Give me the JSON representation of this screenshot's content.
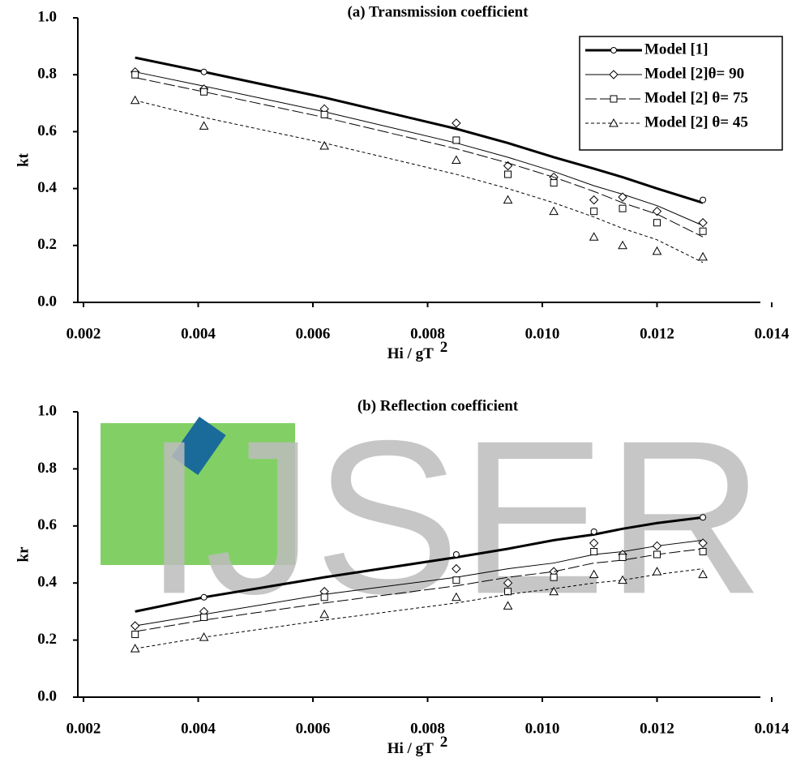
{
  "watermark": "IJSER",
  "chart_data": [
    {
      "type": "line",
      "title": "(a) Transmission coefficient",
      "x_label": "Hi / gT",
      "x_label_superscript": "2",
      "y_label": "kt",
      "x": [
        0.0029,
        0.0041,
        0.0062,
        0.0085,
        0.0094,
        0.0102,
        0.0109,
        0.0114,
        0.012,
        0.0128
      ],
      "xlim": [
        0.002,
        0.014
      ],
      "xticks": [
        0.002,
        0.004,
        0.006,
        0.008,
        {
          "value": 0.01,
          "label": "0.010"
        },
        0.012,
        0.014
      ],
      "ylim": [
        0,
        1
      ],
      "yticks": [
        {
          "value": 0,
          "label": "0.0"
        },
        0.2,
        0.4,
        0.6,
        0.8,
        {
          "value": 1,
          "label": "1.0"
        }
      ],
      "legend": "upper right",
      "series": [
        {
          "name": "Model [1]",
          "color": "#000000",
          "marker": "circle",
          "dash": "solid",
          "width": 3,
          "line": [
            0.86,
            0.81,
            0.72,
            0.61,
            0.56,
            0.51,
            0.47,
            0.44,
            0.4,
            0.35
          ],
          "values": [
            null,
            0.81,
            null,
            null,
            null,
            null,
            null,
            null,
            null,
            0.36
          ]
        },
        {
          "name": "Model [2]θ= 90",
          "color": "#000000",
          "marker": "diamond",
          "dash": "solid",
          "width": 1,
          "line": [
            0.81,
            0.76,
            0.67,
            0.56,
            0.51,
            0.46,
            0.41,
            0.38,
            0.34,
            0.27
          ],
          "values": [
            0.81,
            0.75,
            0.68,
            0.63,
            0.48,
            0.44,
            0.36,
            0.37,
            0.32,
            0.28
          ]
        },
        {
          "name": "Model [2] θ= 75",
          "color": "#000000",
          "marker": "square",
          "dash": "long",
          "width": 1,
          "line": [
            0.79,
            0.74,
            0.65,
            0.54,
            0.49,
            0.44,
            0.39,
            0.35,
            0.31,
            0.23
          ],
          "values": [
            0.8,
            0.74,
            0.66,
            0.57,
            0.45,
            0.42,
            0.32,
            0.33,
            0.28,
            0.25
          ]
        },
        {
          "name": "Model [2] θ= 45",
          "color": "#000000",
          "marker": "triangle",
          "dash": "short",
          "width": 1,
          "line": [
            0.71,
            0.65,
            0.56,
            0.45,
            0.4,
            0.35,
            0.3,
            0.26,
            0.22,
            0.14
          ],
          "values": [
            0.71,
            0.62,
            0.55,
            0.5,
            0.36,
            0.32,
            0.23,
            0.2,
            0.18,
            0.16
          ]
        }
      ]
    },
    {
      "type": "line",
      "title": "(b) Reflection coefficient",
      "x_label": "Hi / gT",
      "x_label_superscript": "2",
      "y_label": "kr",
      "x": [
        0.0029,
        0.0041,
        0.0062,
        0.0085,
        0.0094,
        0.0102,
        0.0109,
        0.0114,
        0.012,
        0.0128
      ],
      "xlim": [
        0.002,
        0.014
      ],
      "xticks": [
        0.002,
        0.004,
        0.006,
        0.008,
        {
          "value": 0.01,
          "label": "0.010"
        },
        0.012,
        0.014
      ],
      "ylim": [
        0,
        1
      ],
      "yticks": [
        {
          "value": 0,
          "label": "0.0"
        },
        0.2,
        0.4,
        0.6,
        0.8,
        {
          "value": 1,
          "label": "1.0"
        }
      ],
      "series": [
        {
          "name": "Model [1]",
          "color": "#000000",
          "marker": "circle",
          "dash": "solid",
          "width": 3,
          "line": [
            0.3,
            0.35,
            0.42,
            0.49,
            0.52,
            0.55,
            0.57,
            0.59,
            0.61,
            0.63
          ],
          "values": [
            null,
            0.35,
            null,
            0.5,
            null,
            null,
            0.58,
            null,
            null,
            0.63
          ]
        },
        {
          "name": "Model [2]θ= 90",
          "color": "#000000",
          "marker": "diamond",
          "dash": "solid",
          "width": 1,
          "line": [
            0.25,
            0.29,
            0.36,
            0.42,
            0.45,
            0.47,
            0.5,
            0.51,
            0.53,
            0.55
          ],
          "values": [
            0.25,
            0.3,
            0.37,
            0.45,
            0.4,
            0.44,
            0.54,
            0.5,
            0.53,
            0.54
          ]
        },
        {
          "name": "Model [2] θ= 75",
          "color": "#000000",
          "marker": "square",
          "dash": "long",
          "width": 1,
          "line": [
            0.23,
            0.27,
            0.33,
            0.39,
            0.42,
            0.44,
            0.47,
            0.48,
            0.5,
            0.52
          ],
          "values": [
            0.22,
            0.28,
            0.35,
            0.41,
            0.37,
            0.42,
            0.51,
            0.49,
            0.5,
            0.51
          ]
        },
        {
          "name": "Model [2] θ= 45",
          "color": "#000000",
          "marker": "triangle",
          "dash": "short",
          "width": 1,
          "line": [
            0.17,
            0.21,
            0.27,
            0.33,
            0.36,
            0.38,
            0.4,
            0.41,
            0.43,
            0.45
          ],
          "values": [
            0.17,
            0.21,
            0.29,
            0.35,
            0.32,
            0.37,
            0.43,
            0.41,
            0.44,
            0.43
          ]
        }
      ]
    }
  ]
}
